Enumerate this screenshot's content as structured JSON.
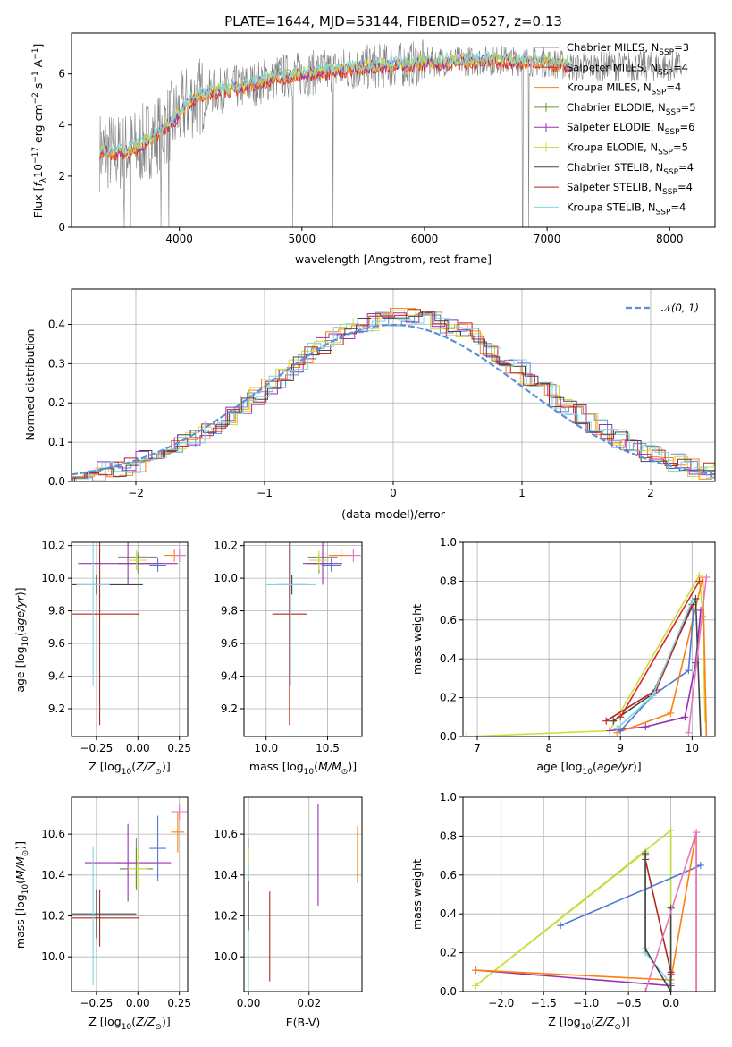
{
  "title": "PLATE=1644, MJD=53144, FIBERID=0527, z=0.13",
  "colors": {
    "Chabrier MILES": "#8c8c8c",
    "Salpeter MILES": "#d62728",
    "Kroupa MILES": "#ff7f0e",
    "Chabrier ELODIE": "#6a8f3a",
    "Salpeter ELODIE": "#9b30b5",
    "Kroupa ELODIE": "#cddc39",
    "Chabrier STELIB": "#444444",
    "Salpeter STELIB": "#b3261e",
    "Kroupa STELIB": "#7fd6e0",
    "gauss": "#5b8fd9",
    "pink": "#e377c2",
    "blue": "#4e79d6",
    "lime": "#bcdd3a",
    "data": "#808080"
  },
  "chart_data": [
    {
      "id": "spectrum",
      "type": "line",
      "title": "PLATE=1644, MJD=53144, FIBERID=0527, z=0.13",
      "xlabel": "wavelength [Angstrom, rest frame]",
      "ylabel": "Flux [f_λ 10^-17 erg cm^-2 s^-1 A^-1]",
      "xlim": [
        3120,
        8370
      ],
      "ylim": [
        0,
        7.6
      ],
      "xticks": [
        4000,
        5000,
        6000,
        7000,
        8000
      ],
      "yticks": [
        0,
        2,
        4,
        6
      ],
      "grid": false,
      "legend_position": "top-right",
      "model_flux": {
        "x": [
          3350,
          3500,
          3650,
          3800,
          3950,
          4100,
          4250,
          4400,
          4600,
          4800,
          5000,
          5200,
          5400,
          5600,
          5800,
          6000,
          6200,
          6400,
          6600,
          6800,
          7000,
          7200
        ],
        "y": [
          3.0,
          2.9,
          3.1,
          3.6,
          4.2,
          5.0,
          5.3,
          5.4,
          5.6,
          5.9,
          6.0,
          6.1,
          6.2,
          6.3,
          6.35,
          6.45,
          6.5,
          6.5,
          6.55,
          6.5,
          6.45,
          6.3
        ]
      },
      "series": [
        {
          "name": "Chabrier MILES, N_SSP=3"
        },
        {
          "name": "Salpeter MILES, N_SSP=4"
        },
        {
          "name": "Kroupa MILES, N_SSP=4"
        },
        {
          "name": "Chabrier ELODIE, N_SSP=5"
        },
        {
          "name": "Salpeter ELODIE, N_SSP=6"
        },
        {
          "name": "Kroupa ELODIE, N_SSP=5"
        },
        {
          "name": "Chabrier STELIB, N_SSP=4"
        },
        {
          "name": "Salpeter STELIB, N_SSP=4"
        },
        {
          "name": "Kroupa STELIB, N_SSP=4"
        }
      ]
    },
    {
      "id": "residuals",
      "type": "line",
      "xlabel": "(data-model)/error",
      "ylabel": "Normed distribution",
      "xlim": [
        -2.5,
        2.5
      ],
      "ylim": [
        0,
        0.49
      ],
      "xticks": [
        -2,
        -1,
        0,
        1,
        2
      ],
      "yticks": [
        0.0,
        0.1,
        0.2,
        0.3,
        0.4
      ],
      "grid": true,
      "legend_position": "top-right",
      "legend": "N(0,1)",
      "bin_width": 0.1
    },
    {
      "id": "age-vs-Z",
      "type": "scatter",
      "xlabel": "Z [log10(Z/Z☉)]",
      "ylabel": "age [log10(age/yr)]",
      "xlim": [
        -0.4,
        0.3
      ],
      "ylim": [
        9.03,
        10.22
      ],
      "xticks": [
        -0.25,
        0.0,
        0.25
      ],
      "yticks": [
        9.2,
        9.4,
        9.6,
        9.8,
        10.0,
        10.2
      ],
      "grid": true,
      "points": [
        {
          "x": 0.0,
          "y": 10.13,
          "xerr": 0.12,
          "yerr": 0.03,
          "color": "Chabrier MILES"
        },
        {
          "x": -0.23,
          "y": 9.78,
          "xerr": 0.24,
          "yerr": 0.68,
          "color": "Salpeter STELIB"
        },
        {
          "x": 0.22,
          "y": 10.14,
          "xerr": 0.06,
          "yerr": 0.04,
          "color": "Kroupa MILES"
        },
        {
          "x": 0.0,
          "y": 10.09,
          "xerr": 0.12,
          "yerr": 0.06,
          "color": "Chabrier ELODIE"
        },
        {
          "x": -0.06,
          "y": 10.09,
          "xerr": 0.3,
          "yerr": 0.13,
          "color": "Salpeter ELODIE"
        },
        {
          "x": -0.01,
          "y": 10.11,
          "xerr": 0.06,
          "yerr": 0.06,
          "color": "Kroupa ELODIE"
        },
        {
          "x": -0.25,
          "y": 9.96,
          "xerr": 0.28,
          "yerr": 0.06,
          "color": "Chabrier STELIB"
        },
        {
          "x": -0.27,
          "y": 9.96,
          "xerr": 0.1,
          "yerr": 0.62,
          "color": "Kroupa STELIB"
        },
        {
          "x": 0.12,
          "y": 10.08,
          "xerr": 0.05,
          "yerr": 0.04,
          "color": "blue"
        },
        {
          "x": 0.25,
          "y": 10.14,
          "xerr": 0.04,
          "yerr": 0.04,
          "color": "pink"
        }
      ]
    },
    {
      "id": "age-vs-mass",
      "type": "scatter",
      "xlabel": "mass [log10(M/M☉)]",
      "ylabel": "",
      "xlim": [
        9.82,
        10.78
      ],
      "ylim": [
        9.03,
        10.22
      ],
      "xticks": [
        10.0,
        10.5
      ],
      "yticks": [
        9.2,
        9.4,
        9.6,
        9.8,
        10.0,
        10.2
      ],
      "grid": true,
      "points": [
        {
          "x": 10.46,
          "y": 10.13,
          "xerr": 0.12,
          "yerr": 0.03,
          "color": "Chabrier MILES"
        },
        {
          "x": 10.19,
          "y": 9.78,
          "xerr": 0.14,
          "yerr": 0.68,
          "color": "Salpeter STELIB"
        },
        {
          "x": 10.61,
          "y": 10.14,
          "xerr": 0.1,
          "yerr": 0.04,
          "color": "Kroupa MILES"
        },
        {
          "x": 10.43,
          "y": 10.09,
          "xerr": 0.1,
          "yerr": 0.06,
          "color": "Chabrier ELODIE"
        },
        {
          "x": 10.46,
          "y": 10.09,
          "xerr": 0.16,
          "yerr": 0.13,
          "color": "Salpeter ELODIE"
        },
        {
          "x": 10.43,
          "y": 10.11,
          "xerr": 0.08,
          "yerr": 0.06,
          "color": "Kroupa ELODIE"
        },
        {
          "x": 10.21,
          "y": 9.96,
          "xerr": 0.12,
          "yerr": 0.06,
          "color": "Chabrier STELIB"
        },
        {
          "x": 10.2,
          "y": 9.96,
          "xerr": 0.2,
          "yerr": 0.62,
          "color": "Kroupa STELIB"
        },
        {
          "x": 10.53,
          "y": 10.08,
          "xerr": 0.08,
          "yerr": 0.04,
          "color": "blue"
        },
        {
          "x": 10.71,
          "y": 10.14,
          "xerr": 0.06,
          "yerr": 0.04,
          "color": "pink"
        }
      ]
    },
    {
      "id": "weight-vs-age",
      "type": "line",
      "xlabel": "age [log10(age/yr)]",
      "ylabel": "mass weight",
      "xlim": [
        6.8,
        10.32
      ],
      "ylim": [
        0,
        1.0
      ],
      "xticks": [
        7,
        8,
        9,
        10
      ],
      "yticks": [
        0.0,
        0.2,
        0.4,
        0.6,
        0.8,
        1.0
      ],
      "grid": true,
      "series": [
        {
          "color": "Kroupa ELODIE",
          "x": [
            6.85,
            8.85,
            10.1,
            10.15,
            10.18
          ],
          "y": [
            0.0,
            0.03,
            0.83,
            0.62,
            0.09
          ]
        },
        {
          "color": "Salpeter ELODIE",
          "x": [
            8.85,
            9.35,
            9.9,
            10.05,
            10.12
          ],
          "y": [
            0.03,
            0.05,
            0.1,
            0.38,
            0.65
          ]
        },
        {
          "color": "Kroupa MILES",
          "x": [
            8.95,
            9.7,
            10.15,
            10.2
          ],
          "y": [
            0.02,
            0.12,
            0.82,
            0.0
          ]
        },
        {
          "color": "Chabrier STELIB",
          "x": [
            8.9,
            9.45,
            10.05,
            10.12
          ],
          "y": [
            0.08,
            0.22,
            0.71,
            0.0
          ]
        },
        {
          "color": "Salpeter STELIB",
          "x": [
            8.8,
            9.5,
            10.0
          ],
          "y": [
            0.08,
            0.24,
            0.68
          ]
        },
        {
          "color": "blue",
          "x": [
            9.0,
            9.45,
            9.95,
            10.02
          ],
          "y": [
            0.03,
            0.21,
            0.34,
            0.65
          ]
        },
        {
          "color": "Kroupa STELIB",
          "x": [
            8.95,
            9.45,
            10.0
          ],
          "y": [
            0.04,
            0.21,
            0.7
          ]
        },
        {
          "color": "Salpeter MILES",
          "x": [
            9.0,
            10.1
          ],
          "y": [
            0.1,
            0.8
          ]
        },
        {
          "color": "pink",
          "x": [
            9.95,
            10.2
          ],
          "y": [
            0.02,
            0.82
          ]
        }
      ]
    },
    {
      "id": "mass-vs-Z",
      "type": "scatter",
      "xlabel": "Z [log10(Z/Z☉)]",
      "ylabel": "mass [log10(M/M☉)]",
      "xlim": [
        -0.4,
        0.3
      ],
      "ylim": [
        9.83,
        10.78
      ],
      "xticks": [
        -0.25,
        0.0,
        0.25
      ],
      "yticks": [
        10.0,
        10.2,
        10.4,
        10.6
      ],
      "grid": true,
      "points": [
        {
          "x": -0.01,
          "y": 10.46,
          "xerr": 0.12,
          "yerr": 0.12,
          "color": "Chabrier MILES"
        },
        {
          "x": -0.23,
          "y": 10.19,
          "xerr": 0.24,
          "yerr": 0.14,
          "color": "Salpeter STELIB"
        },
        {
          "x": 0.24,
          "y": 10.61,
          "xerr": 0.04,
          "yerr": 0.1,
          "color": "Kroupa MILES"
        },
        {
          "x": -0.01,
          "y": 10.43,
          "xerr": 0.1,
          "yerr": 0.1,
          "color": "Chabrier ELODIE"
        },
        {
          "x": -0.06,
          "y": 10.46,
          "xerr": 0.26,
          "yerr": 0.19,
          "color": "Salpeter ELODIE"
        },
        {
          "x": 0.0,
          "y": 10.43,
          "xerr": 0.06,
          "yerr": 0.1,
          "color": "Kroupa ELODIE"
        },
        {
          "x": -0.25,
          "y": 10.21,
          "xerr": 0.24,
          "yerr": 0.12,
          "color": "Chabrier STELIB"
        },
        {
          "x": -0.27,
          "y": 10.2,
          "xerr": 0.02,
          "yerr": 0.34,
          "color": "Kroupa STELIB"
        },
        {
          "x": 0.12,
          "y": 10.53,
          "xerr": 0.05,
          "yerr": 0.16,
          "color": "blue"
        },
        {
          "x": 0.25,
          "y": 10.71,
          "xerr": 0.05,
          "yerr": 0.04,
          "color": "pink"
        }
      ]
    },
    {
      "id": "mass-vs-EBV",
      "type": "scatter",
      "xlabel": "E(B-V)",
      "ylabel": "",
      "xlim": [
        -0.0015,
        0.0375
      ],
      "ylim": [
        9.83,
        10.78
      ],
      "xticks": [
        0.0,
        0.02
      ],
      "yticks": [
        10.0,
        10.2,
        10.4,
        10.6
      ],
      "grid": true,
      "points": [
        {
          "x": 0.0,
          "y": 10.46,
          "yerr": 0.12,
          "color": "Chabrier MILES"
        },
        {
          "x": 0.007,
          "y": 10.1,
          "yerr": 0.22,
          "color": "Salpeter STELIB"
        },
        {
          "x": 0.036,
          "y": 10.5,
          "yerr": 0.14,
          "color": "Kroupa MILES"
        },
        {
          "x": 0.023,
          "y": 10.5,
          "yerr": 0.25,
          "color": "Salpeter ELODIE"
        },
        {
          "x": 0.0,
          "y": 10.35,
          "yerr": 0.18,
          "color": "Kroupa ELODIE"
        },
        {
          "x": 0.0,
          "y": 10.15,
          "yerr": 0.3,
          "color": "Kroupa STELIB"
        },
        {
          "x": 0.0,
          "y": 10.25,
          "yerr": 0.12,
          "color": "Chabrier STELIB"
        }
      ]
    },
    {
      "id": "weight-vs-Z",
      "type": "line",
      "xlabel": "Z [log10(Z/Z☉)]",
      "ylabel": "mass weight",
      "xlim": [
        -2.45,
        0.52
      ],
      "ylim": [
        0,
        1.0
      ],
      "xticks": [
        -2.0,
        -1.5,
        -1.0,
        -0.5,
        0.0
      ],
      "yticks": [
        0.0,
        0.2,
        0.4,
        0.6,
        0.8,
        1.0
      ],
      "grid": true,
      "series": [
        {
          "color": "lime",
          "x": [
            -2.3,
            0.0,
            0.0,
            -0.02
          ],
          "y": [
            0.03,
            0.83,
            0.0,
            0.06
          ]
        },
        {
          "color": "Kroupa ELODIE",
          "x": [
            -2.3,
            -0.3,
            -0.3
          ],
          "y": [
            0.03,
            0.72,
            0.2
          ]
        },
        {
          "color": "blue",
          "x": [
            -1.3,
            0.35
          ],
          "y": [
            0.34,
            0.65
          ]
        },
        {
          "color": "Salpeter ELODIE",
          "x": [
            -2.3,
            0.0,
            0.0
          ],
          "y": [
            0.11,
            0.03,
            0.09
          ]
        },
        {
          "color": "Kroupa MILES",
          "x": [
            -2.3,
            0.0,
            0.3,
            0.3
          ],
          "y": [
            0.11,
            0.06,
            0.82,
            0.0
          ]
        },
        {
          "color": "Salpeter STELIB",
          "x": [
            -0.3,
            0.0,
            0.0
          ],
          "y": [
            0.68,
            0.1,
            0.0
          ]
        },
        {
          "color": "Kroupa STELIB",
          "x": [
            -0.3,
            -0.3,
            0.0
          ],
          "y": [
            0.7,
            0.2,
            0.04
          ]
        },
        {
          "color": "Chabrier STELIB",
          "x": [
            -0.3,
            -0.3,
            0.0,
            0.0
          ],
          "y": [
            0.71,
            0.22,
            0.0,
            0.43
          ]
        },
        {
          "color": "pink",
          "x": [
            -0.3,
            0.3,
            0.3
          ],
          "y": [
            0.0,
            0.82,
            0.0
          ]
        }
      ]
    }
  ]
}
